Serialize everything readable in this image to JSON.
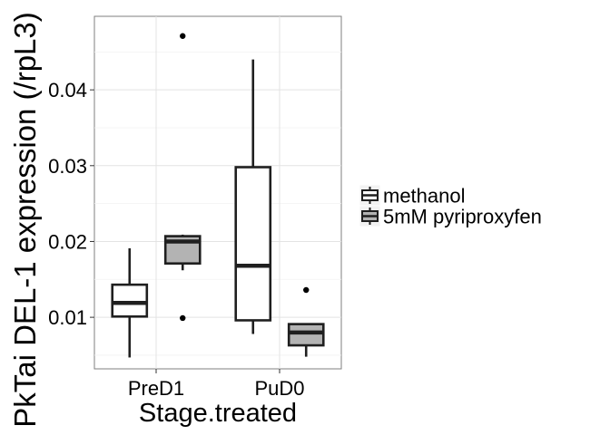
{
  "chart_data": {
    "type": "box",
    "title": "",
    "xlabel": "Stage.treated",
    "ylabel": "PkTai DEL-1 expression (/rpL3)",
    "categories": [
      "PreD1",
      "PuD0"
    ],
    "ylim": [
      0.0032,
      0.0497
    ],
    "yticks": [
      0.01,
      0.02,
      0.03,
      0.04
    ],
    "ytick_labels": [
      "0.01",
      "0.02",
      "0.03",
      "0.04"
    ],
    "grid": true,
    "legend": {
      "position": "right",
      "title": ""
    },
    "series": [
      {
        "name": "methanol",
        "color": "#ffffff",
        "boxes": [
          {
            "category": "PreD1",
            "whisker_low": 0.0047,
            "q1": 0.0101,
            "median": 0.0119,
            "q3": 0.0143,
            "whisker_high": 0.0191,
            "outliers": []
          },
          {
            "category": "PuD0",
            "whisker_low": 0.0078,
            "q1": 0.0096,
            "median": 0.0168,
            "q3": 0.0298,
            "whisker_high": 0.044,
            "outliers": []
          }
        ]
      },
      {
        "name": "5mM pyriproxyfen",
        "color": "#b3b3b3",
        "boxes": [
          {
            "category": "PreD1",
            "whisker_low": 0.0162,
            "q1": 0.0171,
            "median": 0.02,
            "q3": 0.0207,
            "whisker_high": 0.0209,
            "outliers": [
              0.0471,
              0.0099
            ]
          },
          {
            "category": "PuD0",
            "whisker_low": 0.0048,
            "q1": 0.0063,
            "median": 0.008,
            "q3": 0.0091,
            "whisker_high": 0.0091,
            "outliers": [
              0.0136
            ]
          }
        ]
      }
    ]
  }
}
